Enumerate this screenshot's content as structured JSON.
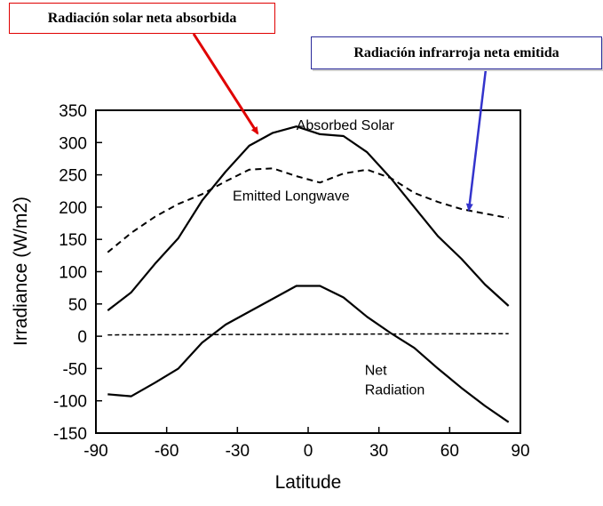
{
  "callouts": {
    "solar": "Radiación solar neta absorbida",
    "infrared": "Radiación infrarroja  neta emitida",
    "solar_arrow_color": "#e00000",
    "infrared_arrow_color": "#3333cc"
  },
  "chart_data": {
    "type": "line",
    "title": "",
    "xlabel": "Latitude",
    "ylabel": "Irradiance (W/m2)",
    "xlim": [
      -90,
      90
    ],
    "ylim": [
      -150,
      350
    ],
    "xticks": [
      -90,
      -60,
      -30,
      0,
      30,
      60,
      90
    ],
    "yticks": [
      -150,
      -100,
      -50,
      0,
      50,
      100,
      150,
      200,
      250,
      300,
      350
    ],
    "grid": false,
    "series": [
      {
        "name": "Absorbed Solar",
        "style": "solid",
        "label_at": [
          -5,
          320
        ],
        "x": [
          -85,
          -75,
          -65,
          -55,
          -45,
          -35,
          -25,
          -15,
          -5,
          5,
          15,
          25,
          35,
          45,
          55,
          65,
          75,
          85
        ],
        "y": [
          40,
          68,
          112,
          152,
          210,
          255,
          295,
          315,
          325,
          313,
          310,
          285,
          245,
          200,
          155,
          120,
          80,
          47
        ]
      },
      {
        "name": "Emitted Longwave",
        "style": "dashed",
        "label_at": [
          -32,
          210
        ],
        "x": [
          -85,
          -75,
          -65,
          -55,
          -45,
          -35,
          -25,
          -15,
          -5,
          5,
          15,
          25,
          35,
          45,
          55,
          65,
          75,
          85
        ],
        "y": [
          130,
          160,
          185,
          205,
          220,
          240,
          258,
          260,
          248,
          238,
          252,
          258,
          245,
          222,
          208,
          197,
          190,
          183
        ]
      },
      {
        "name": "Net\nRadiation",
        "style": "solid",
        "label_at": [
          24,
          -60
        ],
        "x": [
          -85,
          -75,
          -65,
          -55,
          -45,
          -35,
          -25,
          -15,
          -5,
          5,
          15,
          25,
          35,
          45,
          55,
          65,
          75,
          85
        ],
        "y": [
          -90,
          -93,
          -72,
          -50,
          -10,
          18,
          38,
          58,
          78,
          78,
          60,
          30,
          5,
          -18,
          -50,
          -80,
          -108,
          -133
        ]
      },
      {
        "name": "",
        "style": "dashed-fine",
        "x": [
          -85,
          85
        ],
        "y": [
          2,
          4
        ]
      }
    ]
  }
}
